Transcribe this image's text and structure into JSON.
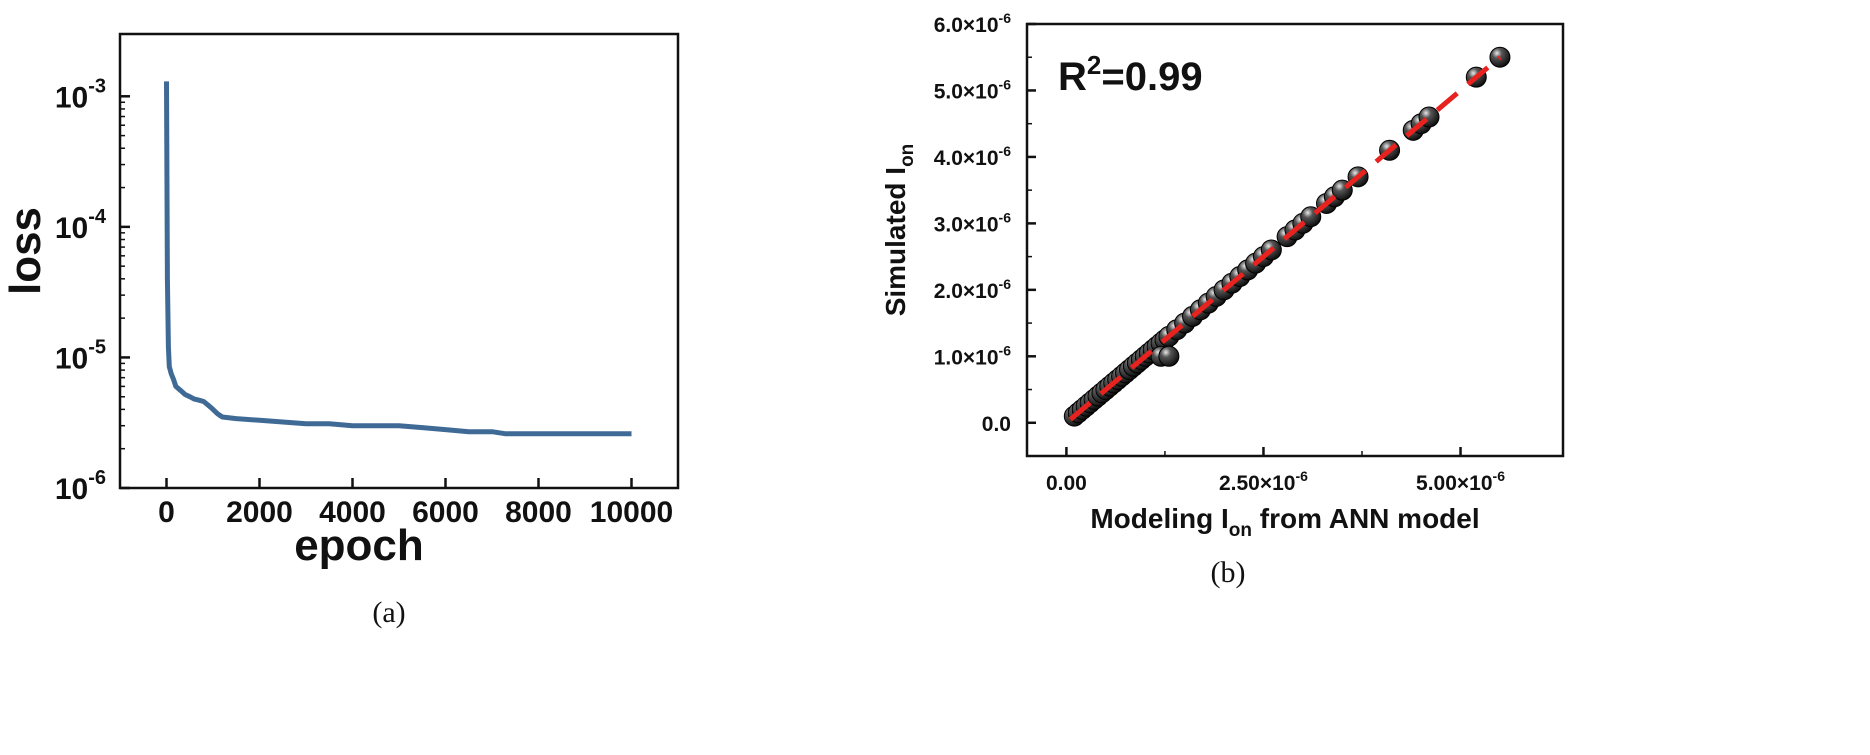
{
  "chart_data": [
    {
      "panel": "(a)",
      "type": "line",
      "xlabel": "epoch",
      "ylabel": "loss",
      "xlim": [
        -1000,
        11000
      ],
      "ylim": [
        1e-06,
        0.003
      ],
      "yscale": "log",
      "x_ticks": [
        {
          "value": 0,
          "label": "0"
        },
        {
          "value": 2000,
          "label": "2000"
        },
        {
          "value": 4000,
          "label": "4000"
        },
        {
          "value": 6000,
          "label": "6000"
        },
        {
          "value": 8000,
          "label": "8000"
        },
        {
          "value": 10000,
          "label": "10000"
        }
      ],
      "y_ticks": [
        {
          "value": 0.001,
          "base": "10",
          "exp": "-3"
        },
        {
          "value": 0.0001,
          "base": "10",
          "exp": "-4"
        },
        {
          "value": 1e-05,
          "base": "10",
          "exp": "-5"
        },
        {
          "value": 1e-06,
          "base": "10",
          "exp": "-6"
        }
      ],
      "color": "#3f6a96",
      "series": [
        {
          "x": [
            0,
            20,
            40,
            60,
            100,
            150,
            200,
            300,
            400,
            500,
            600,
            700,
            800,
            900,
            1000,
            1100,
            1200,
            1500,
            2000,
            2500,
            3000,
            3500,
            4000,
            4500,
            5000,
            5500,
            6000,
            6500,
            7000,
            7300,
            7500,
            8000,
            8500,
            9000,
            9500,
            10000
          ],
          "y": [
            0.0013,
            4e-05,
            1.2e-05,
            8.5e-06,
            7.5e-06,
            6.8e-06,
            6e-06,
            5.6e-06,
            5.2e-06,
            5e-06,
            4.8e-06,
            4.7e-06,
            4.6e-06,
            4.3e-06,
            4e-06,
            3.7e-06,
            3.5e-06,
            3.4e-06,
            3.3e-06,
            3.2e-06,
            3.1e-06,
            3.1e-06,
            3e-06,
            3e-06,
            3e-06,
            2.9e-06,
            2.8e-06,
            2.7e-06,
            2.7e-06,
            2.6e-06,
            2.6e-06,
            2.6e-06,
            2.6e-06,
            2.6e-06,
            2.6e-06,
            2.6e-06
          ]
        }
      ]
    },
    {
      "panel": "(b)",
      "type": "scatter",
      "xlabel_main": "Modeling I",
      "xlabel_sub": "on",
      "xlabel_rest": " from ANN model",
      "ylabel_main": "Simulated I",
      "ylabel_sub": "on",
      "annotation_main": "R",
      "annotation_sup": "2",
      "annotation_rest": "=0.99",
      "xlim": [
        -5e-07,
        6.3e-06
      ],
      "ylim": [
        -5e-07,
        6e-06
      ],
      "x_ticks": [
        {
          "value": 0,
          "main": "0.00",
          "exp": ""
        },
        {
          "value": 2.5e-06,
          "main": "2.50×10",
          "exp": "-6"
        },
        {
          "value": 5e-06,
          "main": "5.00×10",
          "exp": "-6"
        }
      ],
      "y_ticks": [
        {
          "value": 0,
          "main": "0.0",
          "exp": ""
        },
        {
          "value": 1e-06,
          "main": "1.0×10",
          "exp": "-6"
        },
        {
          "value": 2e-06,
          "main": "2.0×10",
          "exp": "-6"
        },
        {
          "value": 3e-06,
          "main": "3.0×10",
          "exp": "-6"
        },
        {
          "value": 4e-06,
          "main": "4.0×10",
          "exp": "-6"
        },
        {
          "value": 5e-06,
          "main": "5.0×10",
          "exp": "-6"
        },
        {
          "value": 6e-06,
          "main": "6.0×10",
          "exp": "-6"
        }
      ],
      "marker_color": "#111111",
      "fit_line": {
        "color": "#e8231f",
        "x": [
          5e-08,
          5.5e-06
        ],
        "y": [
          5e-08,
          5.5e-06
        ]
      },
      "points": {
        "x": [
          1e-07,
          1.5e-07,
          2e-07,
          2.5e-07,
          3e-07,
          3.5e-07,
          4e-07,
          4.5e-07,
          5e-07,
          5.5e-07,
          6e-07,
          6.5e-07,
          7e-07,
          7.5e-07,
          8e-07,
          8.5e-07,
          9e-07,
          9.5e-07,
          1e-06,
          1.05e-06,
          1.1e-06,
          1.15e-06,
          1.2e-06,
          1.25e-06,
          1.3e-06,
          1.4e-06,
          1.5e-06,
          1.6e-06,
          1.7e-06,
          1.8e-06,
          1.9e-06,
          2e-06,
          2.1e-06,
          2.2e-06,
          2.3e-06,
          2.4e-06,
          2.5e-06,
          2.6e-06,
          2.8e-06,
          2.9e-06,
          3e-06,
          3.1e-06,
          3.3e-06,
          3.4e-06,
          3.5e-06,
          3.7e-06,
          4.1e-06,
          4.4e-06,
          4.5e-06,
          4.6e-06,
          5.2e-06,
          5.5e-06,
          1.2e-06,
          1.3e-06
        ],
        "y": [
          1e-07,
          1.5e-07,
          2e-07,
          2.5e-07,
          3e-07,
          3.5e-07,
          4e-07,
          4.5e-07,
          5e-07,
          5.5e-07,
          6e-07,
          6.5e-07,
          7e-07,
          7.5e-07,
          8e-07,
          8.5e-07,
          9e-07,
          9.5e-07,
          1e-06,
          1.05e-06,
          1.1e-06,
          1.15e-06,
          1.2e-06,
          1.25e-06,
          1.3e-06,
          1.4e-06,
          1.5e-06,
          1.6e-06,
          1.7e-06,
          1.8e-06,
          1.9e-06,
          2e-06,
          2.1e-06,
          2.2e-06,
          2.3e-06,
          2.4e-06,
          2.5e-06,
          2.6e-06,
          2.8e-06,
          2.9e-06,
          3e-06,
          3.1e-06,
          3.3e-06,
          3.4e-06,
          3.5e-06,
          3.7e-06,
          4.1e-06,
          4.4e-06,
          4.5e-06,
          4.6e-06,
          5.2e-06,
          5.5e-06,
          1e-06,
          1e-06
        ]
      }
    }
  ],
  "captions": {
    "a": "(a)",
    "b": "(b)"
  }
}
